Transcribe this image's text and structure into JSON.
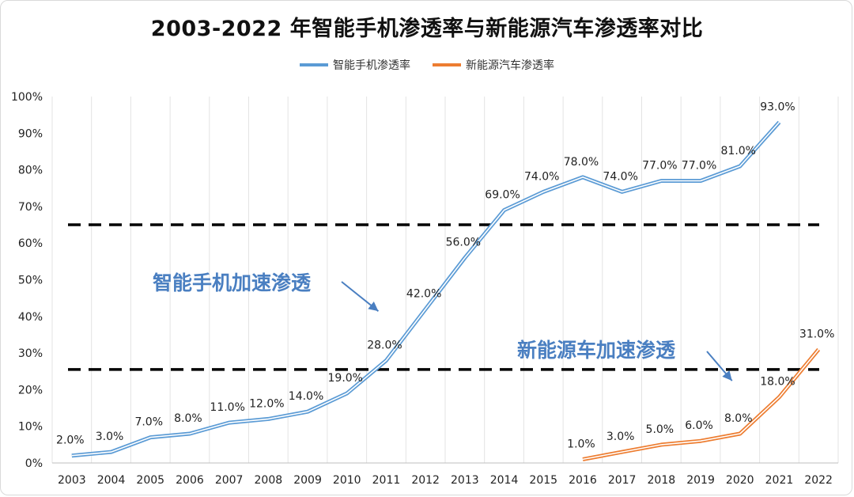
{
  "chart_data": {
    "type": "line",
    "title": "2003-2022 年智能手机渗透率与新能源汽车渗透率对比",
    "x": [
      "2003",
      "2004",
      "2005",
      "2006",
      "2007",
      "2008",
      "2009",
      "2010",
      "2011",
      "2012",
      "2013",
      "2014",
      "2015",
      "2016",
      "2017",
      "2018",
      "2019",
      "2020",
      "2021",
      "2022"
    ],
    "ylim": [
      0,
      100
    ],
    "yticks": [
      "0%",
      "10%",
      "20%",
      "30%",
      "40%",
      "50%",
      "60%",
      "70%",
      "80%",
      "90%",
      "100%"
    ],
    "grid": "vertical",
    "legend_position": "top-center",
    "series": [
      {
        "name": "智能手机渗透率",
        "color": "#5b9bd5",
        "values": [
          2,
          3,
          7,
          8,
          11,
          12,
          14,
          19,
          28,
          42,
          56,
          69,
          74,
          78,
          74,
          77,
          77,
          81,
          93,
          null
        ],
        "labels": [
          "2.0%",
          "3.0%",
          "7.0%",
          "8.0%",
          "11.0%",
          "12.0%",
          "14.0%",
          "19.0%",
          "28.0%",
          "42.0%",
          "56.0%",
          "69.0%",
          "74.0%",
          "78.0%",
          "74.0%",
          "77.0%",
          "77.0%",
          "81.0%",
          "93.0%",
          ""
        ]
      },
      {
        "name": "新能源汽车渗透率",
        "color": "#ed7d31",
        "values": [
          null,
          null,
          null,
          null,
          null,
          null,
          null,
          null,
          null,
          null,
          null,
          null,
          null,
          1,
          3,
          5,
          6,
          8,
          18,
          31
        ],
        "labels": [
          "",
          "",
          "",
          "",
          "",
          "",
          "",
          "",
          "",
          "",
          "",
          "",
          "",
          "1.0%",
          "3.0%",
          "5.0%",
          "6.0%",
          "8.0%",
          "18.0%",
          "31.0%"
        ]
      }
    ],
    "reference_lines": [
      65,
      25.5
    ],
    "annotations": [
      {
        "text": "智能手机加速渗透",
        "arrow_to_x": "2011",
        "arrow_to_y": 41,
        "color": "#4a7fc1"
      },
      {
        "text": "新能源车加速渗透",
        "arrow_to_x": "2020",
        "arrow_to_y": 22,
        "color": "#4a7fc1"
      }
    ]
  }
}
